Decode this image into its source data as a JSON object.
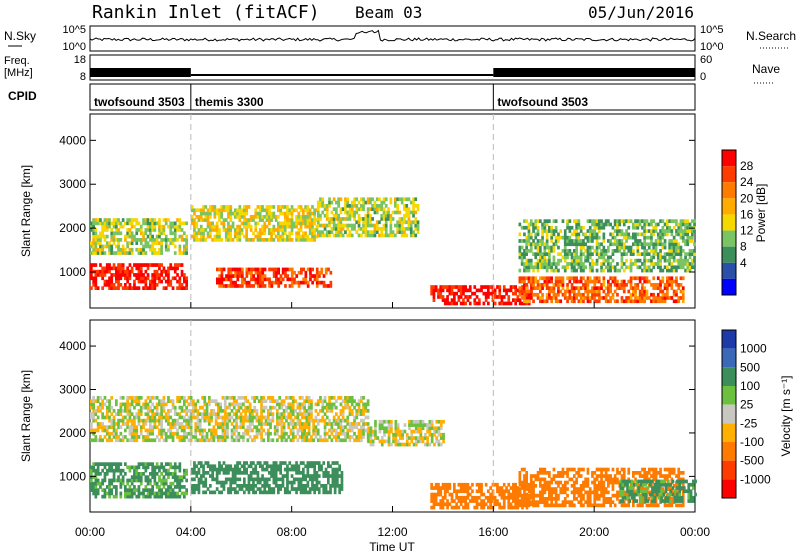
{
  "header": {
    "station": "Rankin Inlet (fitACF)",
    "beam": "Beam 03",
    "date": "05/Jun/2016"
  },
  "strips": {
    "nsky_label": "N.Sky",
    "nsky_ticks": [
      "10^5",
      "10^0"
    ],
    "nsearch_label": "N.Search",
    "nsearch_ticks": [
      "10^5",
      "10^0"
    ],
    "freq_label_line1": "Freq.",
    "freq_label_line2": "[MHz]",
    "freq_ticks": [
      "18",
      "8"
    ],
    "nave_label": "Nave",
    "nave_ticks": [
      "60",
      "0"
    ],
    "cpid_label": "CPID",
    "cpid_segments": [
      {
        "name": "twofsound 3503",
        "start": 0,
        "end": 4
      },
      {
        "name": "themis 3300",
        "start": 4,
        "end": 16
      },
      {
        "name": "twofsound 3503",
        "start": 16,
        "end": 24
      }
    ]
  },
  "axes": {
    "xlabel": "Time UT",
    "xticks": [
      "00:00",
      "04:00",
      "08:00",
      "12:00",
      "16:00",
      "20:00",
      "00:00"
    ],
    "ylabel": "Slant Range [km]",
    "yticks": [
      "4000",
      "3000",
      "2000",
      "1000"
    ]
  },
  "power_scale": {
    "label": "Power [dB]",
    "ticks": [
      "28",
      "24",
      "20",
      "16",
      "12",
      "8",
      "4"
    ],
    "colors": [
      "#ff0000",
      "#ff3c00",
      "#ff7b00",
      "#ffab00",
      "#f5d800",
      "#79c463",
      "#3c8f5a",
      "#2a4fa8",
      "#0000ff"
    ]
  },
  "velocity_scale": {
    "label": "Velocity [m s⁻¹]",
    "ticks": [
      "1000",
      "500",
      "100",
      "25",
      "-25",
      "-100",
      "-500",
      "-1000"
    ],
    "colors": [
      "#1e3aa8",
      "#3b69b8",
      "#3c8f5a",
      "#6cc040",
      "#c8c8c0",
      "#ffb000",
      "#ff7b00",
      "#ff3c00",
      "#ff0000"
    ]
  },
  "chart_data": [
    {
      "type": "heatmap",
      "title": "",
      "xlabel": "Time UT",
      "ylabel": "Slant Range [km]",
      "colorbar_label": "Power [dB]",
      "xlim": [
        0,
        24
      ],
      "ylim": [
        180,
        4600
      ],
      "clim": [
        0,
        32
      ],
      "regions": [
        {
          "t": [
            0,
            3.8
          ],
          "r": [
            600,
            1150
          ],
          "value": 29
        },
        {
          "t": [
            0,
            3.8
          ],
          "r": [
            1400,
            2200
          ],
          "value": 12
        },
        {
          "t": [
            4,
            9
          ],
          "r": [
            1700,
            2500
          ],
          "value": 14
        },
        {
          "t": [
            5,
            9.5
          ],
          "r": [
            650,
            1100
          ],
          "value": 27
        },
        {
          "t": [
            9,
            13
          ],
          "r": [
            1800,
            2700
          ],
          "value": 12
        },
        {
          "t": [
            13.5,
            17.5
          ],
          "r": [
            250,
            700
          ],
          "value": 30
        },
        {
          "t": [
            17,
            23.5
          ],
          "r": [
            300,
            900
          ],
          "value": 24
        },
        {
          "t": [
            17,
            24
          ],
          "r": [
            1000,
            2200
          ],
          "value": 9
        }
      ]
    },
    {
      "type": "heatmap",
      "title": "",
      "xlabel": "Time UT",
      "ylabel": "Slant Range [km]",
      "colorbar_label": "Velocity [m s⁻¹]",
      "xlim": [
        0,
        24
      ],
      "ylim": [
        180,
        4600
      ],
      "regions": [
        {
          "t": [
            0,
            3.8
          ],
          "r": [
            500,
            1300
          ],
          "value": 150
        },
        {
          "t": [
            0,
            11
          ],
          "r": [
            1800,
            2800
          ],
          "value": 0
        },
        {
          "t": [
            4,
            10
          ],
          "r": [
            600,
            1300
          ],
          "value": 200
        },
        {
          "t": [
            11,
            14
          ],
          "r": [
            1700,
            2300
          ],
          "value": 0
        },
        {
          "t": [
            13.5,
            17.5
          ],
          "r": [
            250,
            800
          ],
          "value": -300
        },
        {
          "t": [
            17,
            23.5
          ],
          "r": [
            300,
            1200
          ],
          "value": -250
        },
        {
          "t": [
            21,
            24
          ],
          "r": [
            400,
            900
          ],
          "value": 150
        }
      ]
    }
  ]
}
